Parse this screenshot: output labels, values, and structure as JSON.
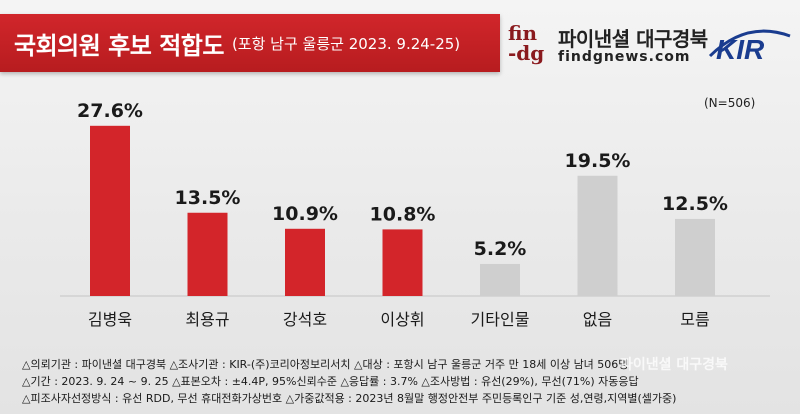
{
  "header": {
    "title": "국회의원 후보 적합도",
    "subtitle": "(포항 남구 울릉군 2023. 9.24-25)"
  },
  "logo": {
    "fin": "fin",
    "dg": "-dg",
    "korean": "파이낸셜 대구경북",
    "url": "findgnews.com",
    "kir": "KIR"
  },
  "sample_note": "(N=506)",
  "chart_data": {
    "type": "bar",
    "categories": [
      "김병욱",
      "최용규",
      "강석호",
      "이상휘",
      "기타인물",
      "없음",
      "모름"
    ],
    "values": [
      27.6,
      13.5,
      10.9,
      10.8,
      5.2,
      19.5,
      12.5
    ],
    "value_labels": [
      "27.6%",
      "13.5%",
      "10.9%",
      "10.8%",
      "5.2%",
      "19.5%",
      "12.5%"
    ],
    "colors": [
      "#d3252a",
      "#d3252a",
      "#d3252a",
      "#d3252a",
      "#cfcfcf",
      "#cfcfcf",
      "#cfcfcf"
    ],
    "ylim": [
      0,
      30
    ],
    "grid": false
  },
  "notes": [
    "△의뢰기관 : 파이낸셜 대구경북     △조사기관 : KIR-(주)코리아정보리서치     △대상 : 포항시 남구 울릉군 거주 만 18세 이상 남녀 506명",
    "△기간 : 2023. 9. 24 ~ 9. 25     △표본오차 : ±4.4P, 95%신뢰수준     △응답률 : 3.7%     △조사방법 : 유선(29%), 무선(71%) 자동응답",
    "△피조사자선정방식 : 유선 RDD, 무선 휴대전화가상번호     △가중값적용 : 2023년 8월말 행정안전부 주민등록인구 기준 성,연령,지역별(셀가중)"
  ],
  "watermark": "파이낸셜 대구경북"
}
